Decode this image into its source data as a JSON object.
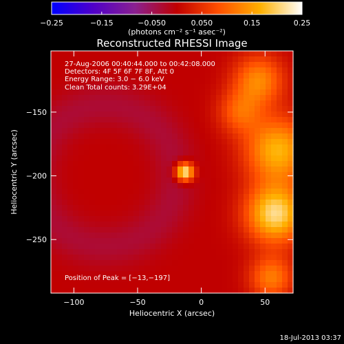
{
  "chart_data": {
    "type": "heatmap",
    "title": "Reconstructed RHESSI Image",
    "xlabel": "Heliocentric X (arcsec)",
    "ylabel": "Heliocentric Y (arcsec)",
    "xlim": [
      -118,
      72
    ],
    "ylim": [
      -292,
      -102
    ],
    "xticks": [
      -100,
      -50,
      0,
      50
    ],
    "xtick_labels": [
      "−100",
      "−50",
      "0",
      "50"
    ],
    "yticks": [
      -150,
      -200,
      -250
    ],
    "ytick_labels": [
      "−150",
      "−200",
      "−250"
    ],
    "grid": false,
    "colorbar": {
      "range": [
        -0.25,
        0.25
      ],
      "ticks": [
        -0.25,
        -0.15,
        -0.05,
        0.05,
        0.15,
        0.25
      ],
      "tick_labels": [
        "−0.25",
        "−0.15",
        "−0.050",
        "0.050",
        "0.15",
        "0.25"
      ],
      "unit_label": "(photons cm⁻² s⁻¹ asec⁻²)",
      "colors": [
        "#0000ff",
        "#5000c8",
        "#8a2090",
        "#c00000",
        "#ff5000",
        "#ffb000",
        "#ffffff"
      ]
    },
    "annotations": {
      "time_range": "27‑Aug‑2006 00:40:44.000 to 00:42:08.000",
      "detectors": "Detectors: 4F 5F 6F 7F 8F, Att 0",
      "energy": "Energy Range: 3.0 − 6.0 keV",
      "clean": "Clean    Total counts: 3.29E+04",
      "peak": "Position of Peak = [−13,−197]"
    },
    "peak_position": [
      -13,
      -197
    ],
    "background_value": 0.0,
    "sources": [
      {
        "x": -13,
        "y": -197,
        "peak": 0.25,
        "sigma": 5
      },
      {
        "x": 58,
        "y": -230,
        "peak": 0.21,
        "sigma": 16
      },
      {
        "x": 60,
        "y": -180,
        "peak": 0.17,
        "sigma": 18
      },
      {
        "x": 45,
        "y": -125,
        "peak": 0.13,
        "sigma": 14
      },
      {
        "x": 55,
        "y": -280,
        "peak": 0.12,
        "sigma": 12
      },
      {
        "x": 30,
        "y": -150,
        "peak": 0.09,
        "sigma": 12
      }
    ]
  },
  "footer": {
    "timestamp": "18‑Jul‑2013 03:37"
  }
}
